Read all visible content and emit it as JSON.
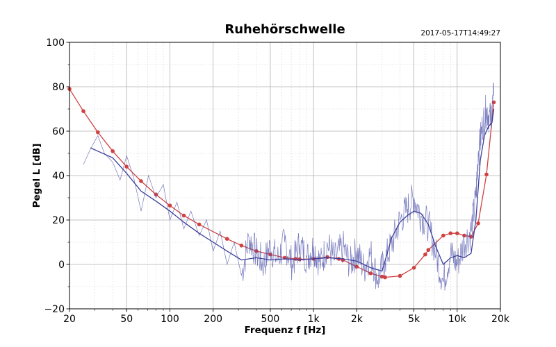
{
  "chart_data": {
    "type": "line",
    "title": "Ruhehörschwelle",
    "timestamp": "2017-05-17T14:49:27",
    "xlabel": "Frequenz f [Hz]",
    "ylabel": "Pegel L [dB]",
    "x_scale": "log",
    "xlim": [
      20,
      20000
    ],
    "ylim": [
      -20,
      100
    ],
    "grid": true,
    "x_ticks": [
      {
        "value": 20,
        "label": "20"
      },
      {
        "value": 50,
        "label": "50"
      },
      {
        "value": 100,
        "label": "100"
      },
      {
        "value": 200,
        "label": "200"
      },
      {
        "value": 500,
        "label": "500"
      },
      {
        "value": 1000,
        "label": "1k"
      },
      {
        "value": 2000,
        "label": "2k"
      },
      {
        "value": 5000,
        "label": "5k"
      },
      {
        "value": 10000,
        "label": "10k"
      },
      {
        "value": 20000,
        "label": "20k"
      }
    ],
    "y_ticks": [
      {
        "value": -20,
        "label": "−20"
      },
      {
        "value": 0,
        "label": "0"
      },
      {
        "value": 20,
        "label": "20"
      },
      {
        "value": 40,
        "label": "40"
      },
      {
        "value": 60,
        "label": "60"
      },
      {
        "value": 80,
        "label": "80"
      },
      {
        "value": 100,
        "label": "100"
      }
    ],
    "colors": {
      "raw": "#4b4faa",
      "smooth": "#3a3e9a",
      "reference": "#d04040",
      "grid": "#b0b0b0"
    },
    "series": [
      {
        "style": "markers-line",
        "x": [
          20,
          25,
          31.5,
          40,
          50,
          63,
          80,
          100,
          125,
          160,
          250,
          315,
          400,
          500,
          630,
          750,
          800,
          1000,
          1250,
          1500,
          1600,
          2000,
          2500,
          3000,
          3150,
          4000,
          5000,
          6000,
          6300,
          8000,
          9000,
          10000,
          11200,
          12500,
          14000,
          16000,
          18000
        ],
        "y": [
          79,
          69,
          59.5,
          51,
          44,
          37.5,
          31.5,
          26.5,
          22,
          18,
          11.5,
          8.5,
          6,
          4.5,
          3,
          2.5,
          2.3,
          2.5,
          3.3,
          2.5,
          2,
          -1,
          -4,
          -5.5,
          -5.8,
          -5.2,
          -1.5,
          4.5,
          6.5,
          13,
          14,
          14,
          13,
          12.5,
          18.5,
          40.5,
          73
        ]
      },
      {
        "style": "raw",
        "x": [
          25,
          28,
          31.5,
          35,
          40,
          45,
          50,
          56,
          63,
          71,
          80,
          90,
          100,
          112,
          125,
          140,
          160,
          180,
          200,
          224,
          250,
          280,
          315,
          355,
          400,
          450,
          500,
          560,
          630,
          710,
          800,
          900,
          1000,
          1120,
          1250,
          1400,
          1600,
          1800,
          2000,
          2240,
          2500,
          2800,
          3150,
          3550,
          4000,
          4500,
          5000,
          5600,
          6300,
          7100,
          8000,
          9000,
          10000,
          11200,
          12500,
          13500,
          14000,
          15000,
          16000,
          17000,
          18000
        ],
        "y": [
          45,
          52,
          58,
          50,
          46,
          38,
          49,
          39,
          24,
          40,
          30,
          36,
          20,
          28,
          16,
          24,
          13,
          20,
          6,
          15,
          0,
          10,
          -5,
          12,
          5,
          0,
          8,
          2,
          10,
          0,
          9,
          3,
          8,
          0,
          9,
          2,
          8,
          0,
          6,
          -2,
          5,
          -7,
          2,
          10,
          20,
          25,
          30,
          22,
          18,
          5,
          -8,
          5,
          0,
          10,
          15,
          30,
          50,
          62,
          70,
          65,
          76
        ]
      },
      {
        "style": "smooth",
        "x": [
          28,
          31.5,
          40,
          50,
          63,
          80,
          100,
          125,
          160,
          200,
          250,
          315,
          400,
          500,
          630,
          800,
          1000,
          1250,
          1600,
          2000,
          2500,
          3000,
          3500,
          4000,
          4500,
          5000,
          5600,
          6300,
          7100,
          8000,
          9000,
          10000,
          11200,
          12500,
          13500,
          14500,
          15500,
          16500,
          17500,
          18000
        ],
        "y": [
          52.5,
          51,
          48,
          41,
          33,
          28.5,
          24,
          19,
          14,
          10,
          6,
          2,
          3,
          2,
          2.5,
          2,
          2.5,
          3,
          2.5,
          1.5,
          -1.5,
          -3,
          12,
          19,
          22,
          24,
          23,
          18,
          8,
          0,
          3,
          4,
          3,
          5,
          20,
          47,
          58,
          62,
          64,
          70
        ]
      }
    ]
  }
}
